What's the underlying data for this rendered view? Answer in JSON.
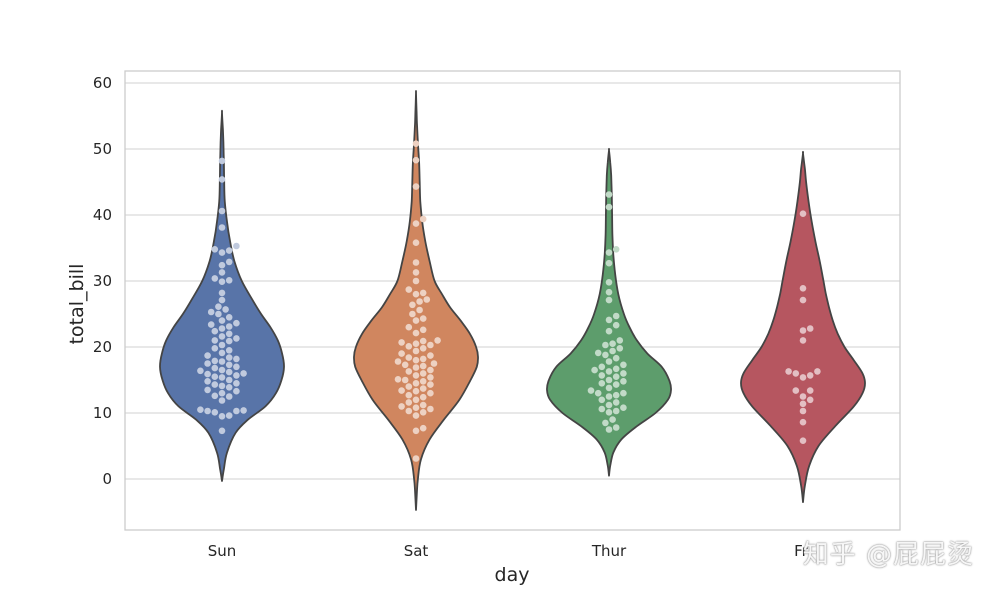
{
  "chart_data": {
    "type": "violin",
    "xlabel": "day",
    "ylabel": "total_bill",
    "categories": [
      "Sun",
      "Sat",
      "Thur",
      "Fri"
    ],
    "ylim": [
      -7.5,
      61.8
    ],
    "yticks": [
      0,
      10,
      20,
      30,
      40,
      50,
      60
    ],
    "grid": true,
    "violins": [
      {
        "name": "Sun",
        "color": "#5874a8",
        "range": [
          -0.3,
          55.5
        ],
        "density": [
          [
            -0.3,
            0.0
          ],
          [
            1.5,
            0.03
          ],
          [
            4,
            0.08
          ],
          [
            7,
            0.22
          ],
          [
            9,
            0.42
          ],
          [
            11,
            0.7
          ],
          [
            13,
            0.87
          ],
          [
            15,
            0.96
          ],
          [
            17,
            1.0
          ],
          [
            19,
            0.97
          ],
          [
            21,
            0.9
          ],
          [
            23,
            0.78
          ],
          [
            25,
            0.63
          ],
          [
            27,
            0.5
          ],
          [
            30,
            0.32
          ],
          [
            33,
            0.2
          ],
          [
            36,
            0.13
          ],
          [
            39,
            0.08
          ],
          [
            42,
            0.045
          ],
          [
            45,
            0.035
          ],
          [
            48,
            0.03
          ],
          [
            51,
            0.022
          ],
          [
            53,
            0.014
          ],
          [
            55.5,
            0.0
          ]
        ],
        "points": [
          7.3,
          9.5,
          9.6,
          10.1,
          10.3,
          10.3,
          10.4,
          10.5,
          11.9,
          12.5,
          12.6,
          13.0,
          13.3,
          13.5,
          13.9,
          14.1,
          14.3,
          14.5,
          14.8,
          15.0,
          15.4,
          15.5,
          15.7,
          15.9,
          16.0,
          16.2,
          16.4,
          16.5,
          16.8,
          17.0,
          17.3,
          17.5,
          17.8,
          17.9,
          18.2,
          18.4,
          18.7,
          19.1,
          19.5,
          19.8,
          20.3,
          20.9,
          21.0,
          21.3,
          21.6,
          22.0,
          22.4,
          22.8,
          23.1,
          23.4,
          23.6,
          24.0,
          24.5,
          25.0,
          25.3,
          25.7,
          26.1,
          27.1,
          28.2,
          29.9,
          30.1,
          30.4,
          31.3,
          32.4,
          32.9,
          34.3,
          34.6,
          34.8,
          35.3,
          38.1,
          40.6,
          45.4,
          48.2
        ]
      },
      {
        "name": "Sat",
        "color": "#d0865f",
        "range": [
          -4.7,
          58.5
        ],
        "density": [
          [
            -4.7,
            0.0
          ],
          [
            -2,
            0.015
          ],
          [
            0,
            0.03
          ],
          [
            3,
            0.08
          ],
          [
            6,
            0.22
          ],
          [
            9,
            0.45
          ],
          [
            12,
            0.7
          ],
          [
            15,
            0.88
          ],
          [
            17,
            0.98
          ],
          [
            18.5,
            1.0
          ],
          [
            20,
            0.97
          ],
          [
            22,
            0.87
          ],
          [
            24,
            0.72
          ],
          [
            26,
            0.55
          ],
          [
            28,
            0.42
          ],
          [
            30,
            0.3
          ],
          [
            33,
            0.22
          ],
          [
            36,
            0.15
          ],
          [
            39,
            0.1
          ],
          [
            42,
            0.07
          ],
          [
            45,
            0.06
          ],
          [
            48,
            0.05
          ],
          [
            51,
            0.03
          ],
          [
            54,
            0.015
          ],
          [
            56,
            0.008
          ],
          [
            58.5,
            0.0
          ]
        ],
        "points": [
          3.1,
          7.3,
          7.7,
          9.6,
          10.1,
          10.3,
          10.6,
          10.8,
          11.0,
          11.2,
          11.6,
          12.0,
          12.4,
          12.7,
          13.0,
          13.3,
          13.4,
          13.7,
          14.0,
          14.3,
          14.5,
          14.8,
          15.0,
          15.1,
          15.4,
          15.7,
          16.0,
          16.3,
          16.5,
          16.9,
          17.1,
          17.3,
          17.5,
          17.8,
          18.0,
          18.2,
          18.4,
          18.7,
          19.0,
          19.4,
          19.8,
          20.1,
          20.3,
          20.5,
          20.7,
          20.9,
          21.0,
          22.1,
          22.6,
          23.0,
          24.0,
          24.3,
          25.0,
          25.6,
          26.4,
          26.9,
          27.2,
          28.0,
          28.2,
          28.7,
          30.0,
          31.3,
          32.8,
          35.8,
          38.7,
          39.4,
          44.3,
          48.3,
          50.8
        ]
      },
      {
        "name": "Thur",
        "color": "#5d9d6c",
        "range": [
          0.5,
          49.8
        ],
        "density": [
          [
            0.5,
            0.0
          ],
          [
            2,
            0.02
          ],
          [
            4,
            0.07
          ],
          [
            6,
            0.2
          ],
          [
            8,
            0.45
          ],
          [
            10,
            0.75
          ],
          [
            12,
            0.95
          ],
          [
            13.5,
            1.0
          ],
          [
            15,
            0.97
          ],
          [
            17,
            0.85
          ],
          [
            19,
            0.62
          ],
          [
            21,
            0.45
          ],
          [
            23,
            0.33
          ],
          [
            25,
            0.24
          ],
          [
            28,
            0.15
          ],
          [
            31,
            0.1
          ],
          [
            34,
            0.07
          ],
          [
            37,
            0.055
          ],
          [
            40,
            0.05
          ],
          [
            43,
            0.045
          ],
          [
            46,
            0.035
          ],
          [
            48,
            0.02
          ],
          [
            49.8,
            0.0
          ]
        ],
        "points": [
          7.5,
          7.8,
          8.5,
          9.0,
          10.1,
          10.3,
          10.6,
          10.8,
          11.2,
          11.6,
          12.0,
          12.5,
          12.7,
          13.0,
          13.0,
          13.4,
          13.8,
          14.3,
          14.5,
          14.8,
          15.0,
          15.5,
          15.7,
          16.0,
          16.3,
          16.5,
          16.7,
          17.0,
          17.3,
          17.8,
          18.3,
          18.8,
          19.1,
          19.4,
          19.8,
          20.3,
          20.5,
          21.0,
          22.4,
          23.3,
          24.1,
          24.7,
          27.1,
          28.3,
          29.8,
          32.7,
          34.3,
          34.8,
          41.2,
          43.1
        ]
      },
      {
        "name": "Fri",
        "color": "#b65660",
        "range": [
          -3.5,
          49.3
        ],
        "density": [
          [
            -3.5,
            0.0
          ],
          [
            -1,
            0.03
          ],
          [
            2,
            0.1
          ],
          [
            5,
            0.25
          ],
          [
            8,
            0.52
          ],
          [
            11,
            0.82
          ],
          [
            13,
            0.96
          ],
          [
            14.5,
            1.0
          ],
          [
            16,
            0.96
          ],
          [
            18,
            0.82
          ],
          [
            20,
            0.67
          ],
          [
            22,
            0.56
          ],
          [
            24,
            0.48
          ],
          [
            26,
            0.42
          ],
          [
            28,
            0.37
          ],
          [
            30,
            0.33
          ],
          [
            33,
            0.27
          ],
          [
            36,
            0.2
          ],
          [
            39,
            0.14
          ],
          [
            42,
            0.09
          ],
          [
            45,
            0.05
          ],
          [
            47,
            0.03
          ],
          [
            49.3,
            0.0
          ]
        ],
        "points": [
          5.8,
          8.6,
          10.3,
          11.4,
          12.0,
          12.5,
          13.4,
          13.4,
          15.4,
          15.7,
          16.0,
          16.3,
          16.3,
          21.0,
          22.5,
          22.8,
          27.1,
          28.9,
          40.2
        ]
      }
    ]
  },
  "watermark": "知乎 @屁屁烫"
}
